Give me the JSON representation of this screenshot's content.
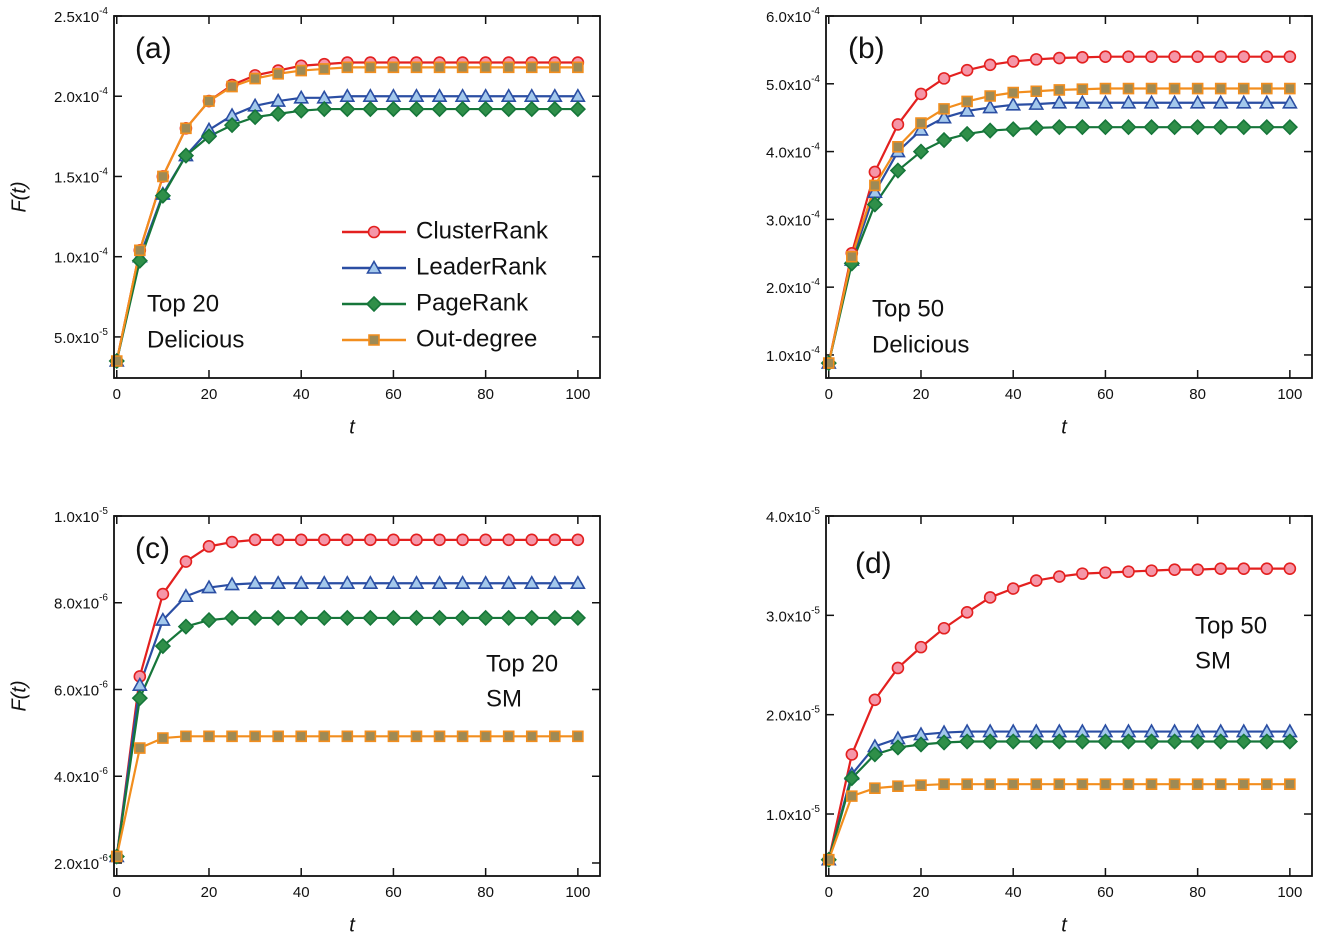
{
  "chart_data": [
    {
      "type": "line",
      "panel_label": "(a)",
      "annotation": [
        "Top 20",
        "Delicious"
      ],
      "xlabel": "t",
      "ylabel": "F(t)",
      "legend": "lower right",
      "x": [
        0,
        5,
        10,
        15,
        20,
        25,
        30,
        35,
        40,
        45,
        50,
        55,
        60,
        65,
        70,
        75,
        80,
        85,
        90,
        95,
        100
      ],
      "xlim": [
        -0.6,
        104.8
      ],
      "xticks": [
        0,
        20,
        40,
        60,
        80,
        100
      ],
      "ylim": [
        2.44e-05,
        0.00025
      ],
      "yticks": [
        {
          "value": 5e-05,
          "label": "5.0x10-5"
        },
        {
          "value": 0.0001,
          "label": "1.0x10-4"
        },
        {
          "value": 0.00015,
          "label": "1.5x10-4"
        },
        {
          "value": 0.0002,
          "label": "2.0x10-4"
        },
        {
          "value": 0.00025,
          "label": "2.5x10-4"
        }
      ],
      "series": [
        {
          "name": "ClusterRank",
          "color": "#e3201f",
          "marker": "circle",
          "marker_color": "#f596a8",
          "values": [
            3.5e-05,
            0.000104,
            0.00015,
            0.00018,
            0.000197,
            0.000207,
            0.000213,
            0.000216,
            0.000219,
            0.00022,
            0.000221,
            0.000221,
            0.000221,
            0.000221,
            0.000221,
            0.000221,
            0.000221,
            0.000221,
            0.000221,
            0.000221,
            0.000221
          ]
        },
        {
          "name": "LeaderRank",
          "color": "#2b4ea3",
          "marker": "triangle",
          "marker_color": "#a3c8ec",
          "values": [
            3.5e-05,
            0.0001,
            0.000139,
            0.000163,
            0.000179,
            0.000188,
            0.000194,
            0.000197,
            0.000199,
            0.000199,
            0.0002,
            0.0002,
            0.0002,
            0.0002,
            0.0002,
            0.0002,
            0.0002,
            0.0002,
            0.0002,
            0.0002,
            0.0002
          ]
        },
        {
          "name": "PageRank",
          "color": "#16763a",
          "marker": "diamond",
          "marker_color": "#2f8f49",
          "values": [
            3.5e-05,
            9.75e-05,
            0.000138,
            0.000163,
            0.000175,
            0.000182,
            0.000187,
            0.000189,
            0.000191,
            0.000192,
            0.000192,
            0.000192,
            0.000192,
            0.000192,
            0.000192,
            0.000192,
            0.000192,
            0.000192,
            0.000192,
            0.000192,
            0.000192
          ]
        },
        {
          "name": "Out-degree",
          "color": "#f28e1e",
          "marker": "square",
          "marker_color": "#9e8a55",
          "values": [
            3.5e-05,
            0.000104,
            0.00015,
            0.00018,
            0.000197,
            0.000206,
            0.000211,
            0.000214,
            0.000216,
            0.000217,
            0.000218,
            0.000218,
            0.000218,
            0.000218,
            0.000218,
            0.000218,
            0.000218,
            0.000218,
            0.000218,
            0.000218,
            0.000218
          ]
        }
      ]
    },
    {
      "type": "line",
      "panel_label": "(b)",
      "annotation": [
        "Top 50",
        "Delicious"
      ],
      "xlabel": "t",
      "x": [
        0,
        5,
        10,
        15,
        20,
        25,
        30,
        35,
        40,
        45,
        50,
        55,
        60,
        65,
        70,
        75,
        80,
        85,
        90,
        95,
        100
      ],
      "xlim": [
        -0.6,
        104.8
      ],
      "xticks": [
        0,
        20,
        40,
        60,
        80,
        100
      ],
      "ylim": [
        6.6e-05,
        0.0006
      ],
      "yticks": [
        {
          "value": 0.0001,
          "label": "1.0x10-4"
        },
        {
          "value": 0.0002,
          "label": "2.0x10-4"
        },
        {
          "value": 0.0003,
          "label": "3.0x10-4"
        },
        {
          "value": 0.0004,
          "label": "4.0x10-4"
        },
        {
          "value": 0.0005,
          "label": "5.0x10-4"
        },
        {
          "value": 0.0006,
          "label": "6.0x10-4"
        }
      ],
      "series": [
        {
          "color": "#e3201f",
          "marker": "circle",
          "marker_color": "#f596a8",
          "values": [
            8.8e-05,
            0.00025,
            0.00037,
            0.00044,
            0.000485,
            0.000508,
            0.00052,
            0.000528,
            0.000533,
            0.000536,
            0.000538,
            0.000539,
            0.00054,
            0.00054,
            0.00054,
            0.00054,
            0.00054,
            0.00054,
            0.00054,
            0.00054,
            0.00054
          ]
        },
        {
          "color": "#2b4ea3",
          "marker": "triangle",
          "marker_color": "#a3c8ec",
          "values": [
            8.8e-05,
            0.00024,
            0.00034,
            0.0004,
            0.000432,
            0.00045,
            0.00046,
            0.000465,
            0.000469,
            0.00047,
            0.000472,
            0.000472,
            0.000472,
            0.000472,
            0.000472,
            0.000472,
            0.000472,
            0.000472,
            0.000472,
            0.000472,
            0.000472
          ]
        },
        {
          "color": "#16763a",
          "marker": "diamond",
          "marker_color": "#2f8f49",
          "values": [
            8.8e-05,
            0.000235,
            0.000322,
            0.000372,
            0.0004,
            0.000417,
            0.000426,
            0.000431,
            0.000433,
            0.000435,
            0.000436,
            0.000436,
            0.000436,
            0.000436,
            0.000436,
            0.000436,
            0.000436,
            0.000436,
            0.000436,
            0.000436,
            0.000436
          ]
        },
        {
          "color": "#f28e1e",
          "marker": "square",
          "marker_color": "#9e8a55",
          "values": [
            8.8e-05,
            0.000245,
            0.00035,
            0.000407,
            0.000442,
            0.000463,
            0.000474,
            0.000482,
            0.000487,
            0.000489,
            0.000491,
            0.000492,
            0.000493,
            0.000493,
            0.000493,
            0.000493,
            0.000493,
            0.000493,
            0.000493,
            0.000493,
            0.000493
          ]
        }
      ]
    },
    {
      "type": "line",
      "panel_label": "(c)",
      "annotation": [
        "Top 20",
        "SM"
      ],
      "xlabel": "t",
      "ylabel": "F(t)",
      "x": [
        0,
        5,
        10,
        15,
        20,
        25,
        30,
        35,
        40,
        45,
        50,
        55,
        60,
        65,
        70,
        75,
        80,
        85,
        90,
        95,
        100
      ],
      "xlim": [
        -0.6,
        104.8
      ],
      "xticks": [
        0,
        20,
        40,
        60,
        80,
        100
      ],
      "ylim": [
        1.7e-06,
        1e-05
      ],
      "yticks": [
        {
          "value": 2e-06,
          "label": "2.0x10-6"
        },
        {
          "value": 4e-06,
          "label": "4.0x10-6"
        },
        {
          "value": 6e-06,
          "label": "6.0x10-6"
        },
        {
          "value": 8e-06,
          "label": "8.0x10-6"
        },
        {
          "value": 1e-05,
          "label": "1.0x10-5"
        }
      ],
      "series": [
        {
          "color": "#e3201f",
          "marker": "circle",
          "marker_color": "#f596a8",
          "values": [
            2.15e-06,
            6.3e-06,
            8.2e-06,
            8.95e-06,
            9.3e-06,
            9.4e-06,
            9.45e-06,
            9.45e-06,
            9.45e-06,
            9.45e-06,
            9.45e-06,
            9.45e-06,
            9.45e-06,
            9.45e-06,
            9.45e-06,
            9.45e-06,
            9.45e-06,
            9.45e-06,
            9.45e-06,
            9.45e-06,
            9.45e-06
          ]
        },
        {
          "color": "#2b4ea3",
          "marker": "triangle",
          "marker_color": "#a3c8ec",
          "values": [
            2.15e-06,
            6.1e-06,
            7.6e-06,
            8.15e-06,
            8.35e-06,
            8.42e-06,
            8.45e-06,
            8.45e-06,
            8.45e-06,
            8.45e-06,
            8.45e-06,
            8.45e-06,
            8.45e-06,
            8.45e-06,
            8.45e-06,
            8.45e-06,
            8.45e-06,
            8.45e-06,
            8.45e-06,
            8.45e-06,
            8.45e-06
          ]
        },
        {
          "color": "#16763a",
          "marker": "diamond",
          "marker_color": "#2f8f49",
          "values": [
            2.15e-06,
            5.8e-06,
            7e-06,
            7.45e-06,
            7.6e-06,
            7.65e-06,
            7.65e-06,
            7.65e-06,
            7.65e-06,
            7.65e-06,
            7.65e-06,
            7.65e-06,
            7.65e-06,
            7.65e-06,
            7.65e-06,
            7.65e-06,
            7.65e-06,
            7.65e-06,
            7.65e-06,
            7.65e-06,
            7.65e-06
          ]
        },
        {
          "color": "#f28e1e",
          "marker": "square",
          "marker_color": "#9e8a55",
          "values": [
            2.15e-06,
            4.65e-06,
            4.88e-06,
            4.92e-06,
            4.92e-06,
            4.92e-06,
            4.92e-06,
            4.92e-06,
            4.92e-06,
            4.92e-06,
            4.92e-06,
            4.92e-06,
            4.92e-06,
            4.92e-06,
            4.92e-06,
            4.92e-06,
            4.92e-06,
            4.92e-06,
            4.92e-06,
            4.92e-06,
            4.92e-06
          ]
        }
      ]
    },
    {
      "type": "line",
      "panel_label": "(d)",
      "annotation": [
        "Top 50",
        "SM"
      ],
      "xlabel": "t",
      "x": [
        0,
        5,
        10,
        15,
        20,
        25,
        30,
        35,
        40,
        45,
        50,
        55,
        60,
        65,
        70,
        75,
        80,
        85,
        90,
        95,
        100
      ],
      "xlim": [
        -0.6,
        104.8
      ],
      "xticks": [
        0,
        20,
        40,
        60,
        80,
        100
      ],
      "ylim": [
        3.76e-06,
        4e-05
      ],
      "yticks": [
        {
          "value": 1e-05,
          "label": "1.0x10-5"
        },
        {
          "value": 2e-05,
          "label": "2.0x10-5"
        },
        {
          "value": 3e-05,
          "label": "3.0x10-5"
        },
        {
          "value": 4e-05,
          "label": "4.0x10-5"
        }
      ],
      "series": [
        {
          "color": "#e3201f",
          "marker": "circle",
          "marker_color": "#f596a8",
          "values": [
            5.4e-06,
            1.6e-05,
            2.15e-05,
            2.47e-05,
            2.68e-05,
            2.87e-05,
            3.03e-05,
            3.18e-05,
            3.27e-05,
            3.35e-05,
            3.39e-05,
            3.42e-05,
            3.43e-05,
            3.44e-05,
            3.45e-05,
            3.46e-05,
            3.46e-05,
            3.47e-05,
            3.47e-05,
            3.47e-05,
            3.47e-05
          ]
        },
        {
          "color": "#2b4ea3",
          "marker": "triangle",
          "marker_color": "#a3c8ec",
          "values": [
            5.4e-06,
            1.4e-05,
            1.68e-05,
            1.76e-05,
            1.8e-05,
            1.82e-05,
            1.83e-05,
            1.83e-05,
            1.83e-05,
            1.83e-05,
            1.83e-05,
            1.83e-05,
            1.83e-05,
            1.83e-05,
            1.83e-05,
            1.83e-05,
            1.83e-05,
            1.83e-05,
            1.83e-05,
            1.83e-05,
            1.83e-05
          ]
        },
        {
          "color": "#16763a",
          "marker": "diamond",
          "marker_color": "#2f8f49",
          "values": [
            5.4e-06,
            1.36e-05,
            1.6e-05,
            1.67e-05,
            1.7e-05,
            1.72e-05,
            1.73e-05,
            1.73e-05,
            1.73e-05,
            1.73e-05,
            1.73e-05,
            1.73e-05,
            1.73e-05,
            1.73e-05,
            1.73e-05,
            1.73e-05,
            1.73e-05,
            1.73e-05,
            1.73e-05,
            1.73e-05,
            1.73e-05
          ]
        },
        {
          "color": "#f28e1e",
          "marker": "square",
          "marker_color": "#9e8a55",
          "values": [
            5.4e-06,
            1.18e-05,
            1.26e-05,
            1.28e-05,
            1.29e-05,
            1.3e-05,
            1.3e-05,
            1.3e-05,
            1.3e-05,
            1.3e-05,
            1.3e-05,
            1.3e-05,
            1.3e-05,
            1.3e-05,
            1.3e-05,
            1.3e-05,
            1.3e-05,
            1.3e-05,
            1.3e-05,
            1.3e-05,
            1.3e-05
          ]
        }
      ]
    }
  ]
}
